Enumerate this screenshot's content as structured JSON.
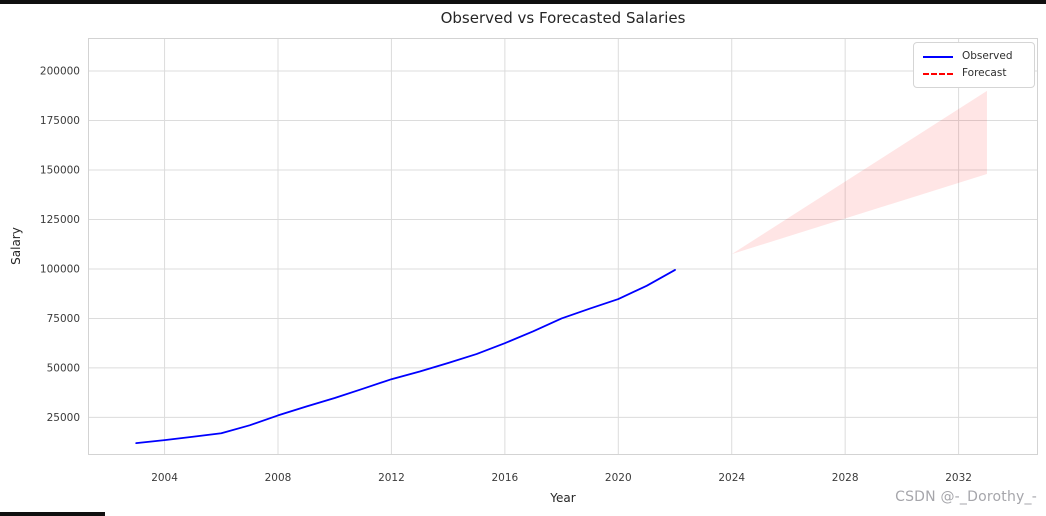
{
  "page": {
    "watermark": "CSDN @-_Dorothy_-"
  },
  "chart_data": {
    "type": "line",
    "title": "Observed vs Forecasted Salaries",
    "xlabel": "Year",
    "ylabel": "Salary",
    "grid": true,
    "x_ticks": [
      2004,
      2008,
      2012,
      2016,
      2020,
      2024,
      2028,
      2032
    ],
    "y_ticks": [
      25000,
      50000,
      75000,
      100000,
      125000,
      150000,
      175000,
      200000
    ],
    "x_range": [
      2001.3,
      2034.8
    ],
    "y_range": [
      6000,
      216700
    ],
    "legend": {
      "position": "upper right",
      "entries": [
        {
          "label": "Observed",
          "color": "#0000ff",
          "style": "solid"
        },
        {
          "label": "Forecast",
          "color": "#ff0000",
          "style": "dashed"
        }
      ]
    },
    "series": [
      {
        "name": "Observed",
        "kind": "line",
        "color": "#0000ff",
        "x": [
          2003,
          2004,
          2005,
          2006,
          2007,
          2008,
          2009,
          2010,
          2011,
          2012,
          2013,
          2014,
          2015,
          2016,
          2017,
          2018,
          2019,
          2020,
          2021,
          2022
        ],
        "y": [
          12000,
          13500,
          15200,
          17000,
          21000,
          26000,
          30500,
          34800,
          39500,
          44300,
          48200,
          52500,
          57000,
          62500,
          68500,
          75000,
          80000,
          84800,
          91500,
          99500
        ]
      },
      {
        "name": "Forecast confidence interval",
        "kind": "band",
        "fill": "rgba(255,0,0,0.10)",
        "x": [
          2024,
          2033
        ],
        "lower": [
          107500,
          148000
        ],
        "upper": [
          107500,
          190000
        ]
      }
    ],
    "colors": {
      "grid": "#dcdcdc",
      "border": "#d3d3d3",
      "text": "#3b3b3b",
      "title": "#262626",
      "watermark": "#a6a6ab"
    }
  }
}
